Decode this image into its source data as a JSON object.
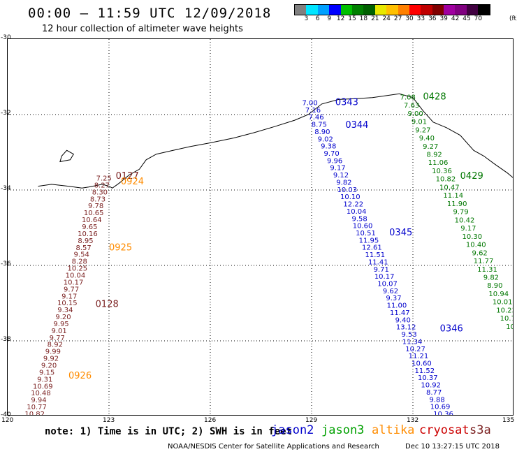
{
  "header": {
    "title": "00:00 – 11:59 UTC 12/09/2018",
    "subtitle": "12 hour collection of altimeter wave heights"
  },
  "legend": {
    "colors": [
      "#808080",
      "#00e5ff",
      "#00a0ff",
      "#0000ff",
      "#00c000",
      "#008000",
      "#006000",
      "#e8e800",
      "#ffc000",
      "#ff8000",
      "#ff0000",
      "#c00000",
      "#800000",
      "#a000a0",
      "#800080",
      "#400040",
      "#000000"
    ],
    "labels": [
      "3",
      "6",
      "9",
      "12",
      "15",
      "18",
      "21",
      "24",
      "27",
      "30",
      "33",
      "36",
      "39",
      "42",
      "45",
      "70"
    ],
    "unit": "(ft)"
  },
  "map": {
    "lat_labels": [
      "-30",
      "-32",
      "-34",
      "-36",
      "-38",
      "-40"
    ],
    "lon_labels": [
      "120",
      "123",
      "126",
      "129",
      "132",
      "135"
    ],
    "coast": [
      [
        120.9,
        -33.9
      ],
      [
        121.3,
        -33.85
      ],
      [
        121.8,
        -33.9
      ],
      [
        122.2,
        -33.95
      ],
      [
        122.4,
        -33.92
      ],
      [
        122.8,
        -33.85
      ],
      [
        123.0,
        -33.9
      ],
      [
        123.1,
        -33.95
      ],
      [
        123.3,
        -33.82
      ],
      [
        123.6,
        -33.6
      ],
      [
        123.9,
        -33.45
      ],
      [
        124.1,
        -33.2
      ],
      [
        124.4,
        -33.05
      ],
      [
        124.9,
        -32.95
      ],
      [
        125.4,
        -32.85
      ],
      [
        126.0,
        -32.75
      ],
      [
        126.7,
        -32.62
      ],
      [
        127.3,
        -32.48
      ],
      [
        127.9,
        -32.32
      ],
      [
        128.5,
        -32.15
      ],
      [
        128.9,
        -32.0
      ],
      [
        129.3,
        -31.72
      ],
      [
        129.8,
        -31.6
      ],
      [
        130.3,
        -31.58
      ],
      [
        130.8,
        -31.55
      ],
      [
        131.2,
        -31.5
      ],
      [
        131.6,
        -31.45
      ],
      [
        132.0,
        -31.55
      ],
      [
        132.3,
        -31.9
      ],
      [
        132.6,
        -32.2
      ],
      [
        133.0,
        -32.35
      ],
      [
        133.4,
        -32.55
      ],
      [
        133.8,
        -32.95
      ],
      [
        134.1,
        -33.1
      ],
      [
        134.4,
        -33.3
      ],
      [
        134.8,
        -33.55
      ],
      [
        135.0,
        -33.7
      ],
      [
        135.15,
        -34.0
      ]
    ],
    "island": [
      [
        121.55,
        -33.25
      ],
      [
        121.85,
        -33.2
      ],
      [
        121.95,
        -33.05
      ],
      [
        121.75,
        -32.95
      ],
      [
        121.6,
        -33.1
      ]
    ],
    "passes": [
      {
        "id": "0343",
        "color": "#0000cc",
        "label_lon": 129.7,
        "label_lat": -31.75,
        "start": [
          128.95,
          -31.75
        ],
        "end": [
          132.9,
          -40.0
        ],
        "values": [
          "7.00",
          "7.16",
          "7.46",
          "8.75",
          "8.90",
          "9.02",
          "9.38",
          "9.70",
          "9.96",
          "9.17",
          "9.12",
          "9.82",
          "10.03",
          "10.10",
          "12.22",
          "10.04",
          "9.58",
          "10.60",
          "10.51",
          "11.95",
          "12.61",
          "11.51",
          "11.41",
          "9.71",
          "10.17",
          "10.07",
          "9.62",
          "9.37",
          "11.00",
          "11.47",
          "9.40",
          "13.12",
          "9.53",
          "11.34",
          "10.27",
          "11.21",
          "10.60",
          "11.52",
          "10.37",
          "10.92",
          "8.77",
          "9.88",
          "10.69",
          "10.36"
        ]
      },
      {
        "id": "0428",
        "color": "#007700",
        "label_lon": 132.3,
        "label_lat": -31.6,
        "start": [
          131.85,
          -31.6
        ],
        "end": [
          135.1,
          -37.9
        ],
        "values": [
          "7.08",
          "7.63",
          "9.00",
          "9.01",
          "9.27",
          "9.40",
          "9.27",
          "8.92",
          "11.06",
          "10.36",
          "10.82",
          "10.47",
          "11.14",
          "11.90",
          "9.79",
          "10.42",
          "9.17",
          "10.30",
          "10.40",
          "9.62",
          "11.77",
          "11.31",
          "9.82",
          "8.90",
          "10.94",
          "10.01",
          "10.23",
          "10.75",
          "10.8",
          "12"
        ]
      },
      {
        "id": "0127",
        "color": "#7a1f1f",
        "label_lon": 123.2,
        "label_lat": -33.7,
        "start": [
          122.85,
          -33.75
        ],
        "end": [
          120.8,
          -40.0
        ],
        "values": [
          "7.25",
          "8.27",
          "8.30",
          "8.73",
          "9.78",
          "10.65",
          "10.64",
          "9.65",
          "10.16",
          "8.95",
          "8.57",
          "9.54",
          "8.28",
          "10.25",
          "10.04",
          "10.17",
          "9.77",
          "9.17",
          "10.15",
          "9.34",
          "9.20",
          "9.95",
          "9.01",
          "9.77",
          "8.92",
          "9.99",
          "9.92",
          "9.20",
          "9.15",
          "9.31",
          "10.69",
          "10.48",
          "9.94",
          "10.77",
          "10.82"
        ]
      }
    ],
    "extra_labels": [
      {
        "text": "0344",
        "color": "#0000cc",
        "lon": 130.0,
        "lat": -32.35
      },
      {
        "text": "0345",
        "color": "#0000cc",
        "lon": 131.3,
        "lat": -35.2
      },
      {
        "text": "0346",
        "color": "#0000cc",
        "lon": 132.8,
        "lat": -37.75
      },
      {
        "text": "0429",
        "color": "#007700",
        "lon": 133.4,
        "lat": -33.7
      },
      {
        "text": "0924",
        "color": "#ff8c00",
        "lon": 123.35,
        "lat": -33.85
      },
      {
        "text": "0925",
        "color": "#ff8c00",
        "lon": 123.0,
        "lat": -35.6
      },
      {
        "text": "0128",
        "color": "#7a1f1f",
        "lon": 122.6,
        "lat": -37.1
      },
      {
        "text": "0926",
        "color": "#ff8c00",
        "lon": 121.8,
        "lat": -39.0
      }
    ]
  },
  "footer": {
    "note": "note: 1) Time is in UTC; 2) SWH is in feet",
    "satellites": [
      {
        "name": "jason2",
        "color": "#0000cc"
      },
      {
        "name": "jason3",
        "color": "#00a000"
      },
      {
        "name": "altika",
        "color": "#ff8c00"
      },
      {
        "name": "cryosat",
        "color": "#cc0000"
      },
      {
        "name": "s3a",
        "color": "#7a1f1f"
      }
    ],
    "credit": "NOAA/NESDIS Center for Satellite Applications and Research",
    "timestamp": "Dec 10 13:27:15 UTC 2018"
  }
}
